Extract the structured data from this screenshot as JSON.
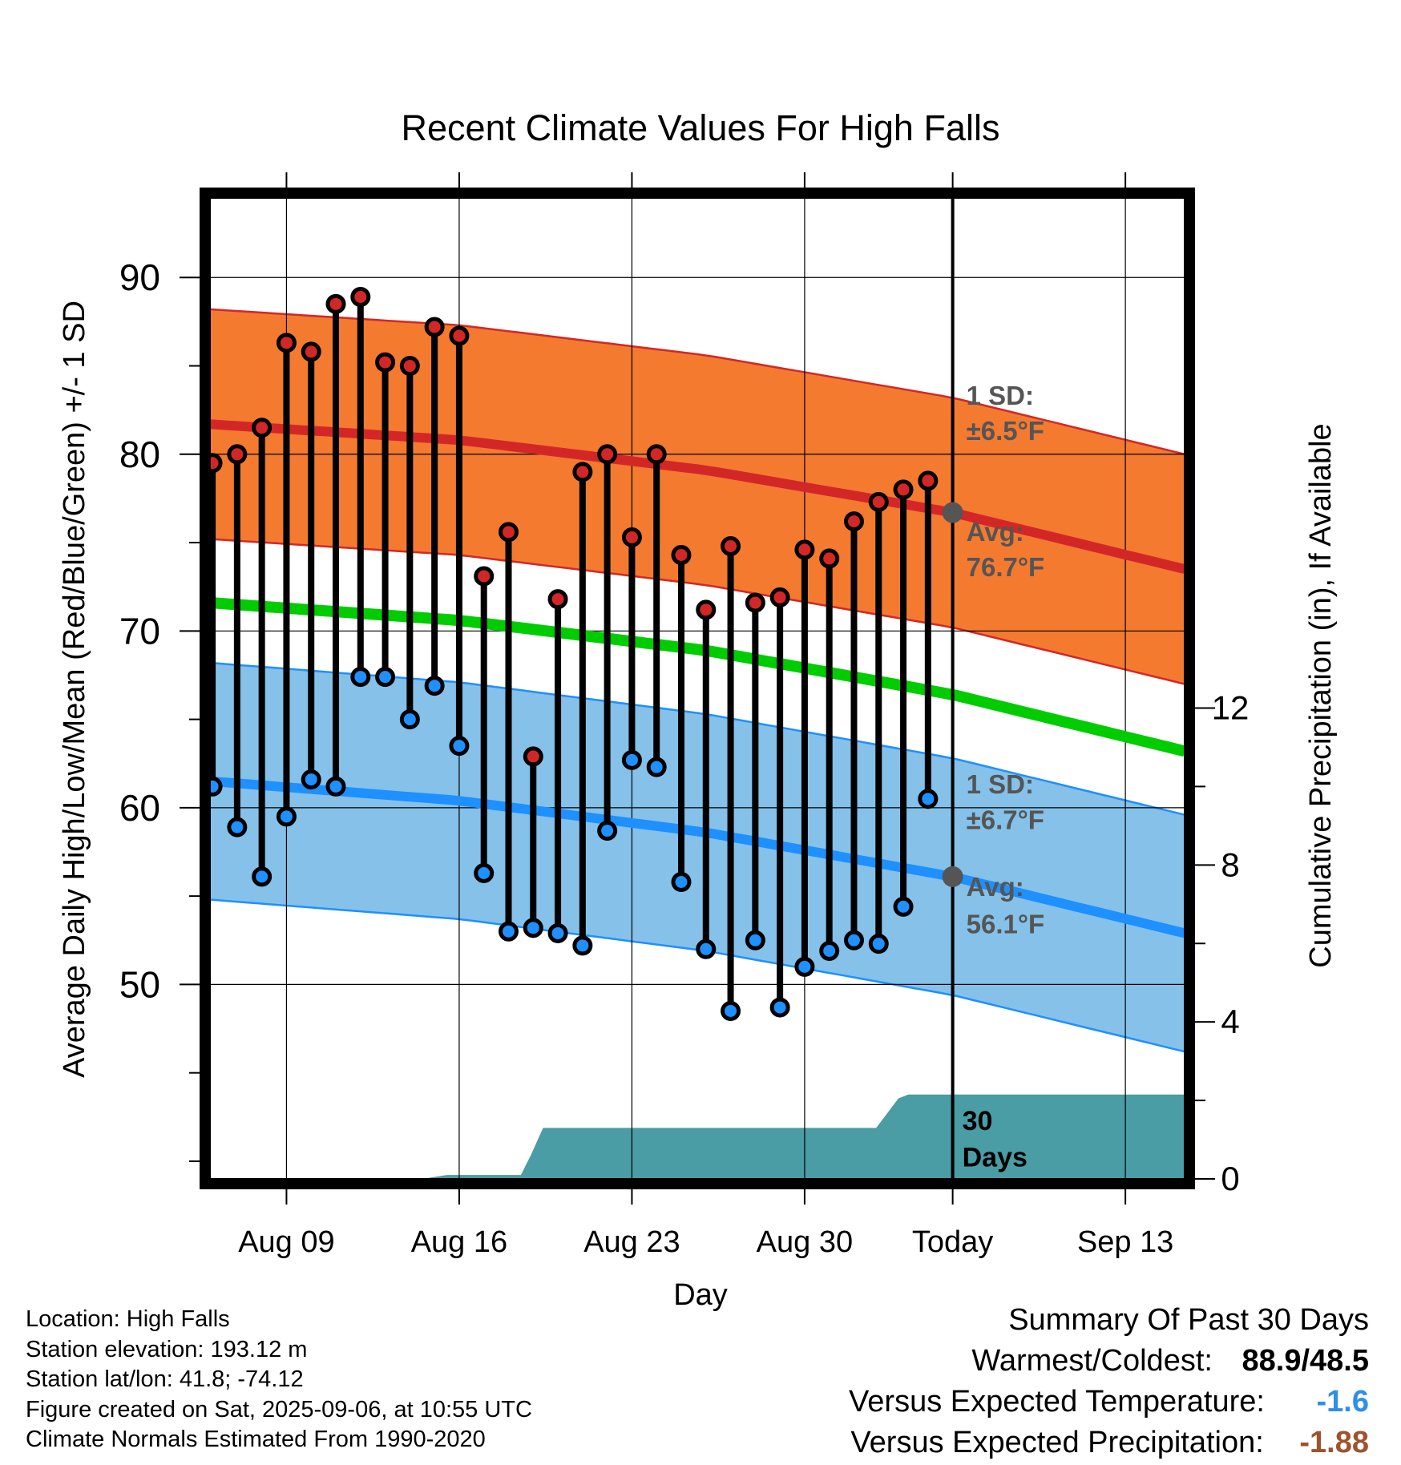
{
  "chart_data": {
    "type": "line",
    "title": "Recent Climate Values For High Falls",
    "xlabel": "Day",
    "ylabel": "Average Daily High/Low/Mean (Red/Blue/Green) +/- 1 SD",
    "y2label": "Cumulative Precipitation (in), If Available",
    "x_ticks": [
      "Aug 09",
      "Aug 16",
      "Aug 23",
      "Aug 30",
      "Today",
      "Sep 13"
    ],
    "x_tick_offsets_days": [
      -27,
      -20,
      -13,
      -6,
      0,
      7
    ],
    "xlim_days": [
      -30.1,
      9.4
    ],
    "ylim": [
      39,
      94.5
    ],
    "y_ticks": [
      50,
      60,
      70,
      80,
      90
    ],
    "y2lim": [
      0,
      25
    ],
    "y2_ticks": [
      0,
      4,
      8,
      12
    ],
    "grid": true,
    "daily": {
      "high": [
        79.5,
        80.0,
        81.5,
        86.3,
        85.8,
        88.5,
        88.9,
        85.2,
        85.0,
        87.2,
        86.7,
        73.1,
        75.6,
        62.9,
        71.8,
        79.0,
        80.0,
        75.3,
        80.0,
        74.3,
        71.2,
        74.8,
        71.6,
        71.9,
        74.6,
        74.1,
        76.2,
        77.3,
        78.0,
        78.5
      ],
      "low": [
        61.2,
        58.9,
        56.1,
        59.5,
        61.6,
        61.2,
        67.4,
        67.4,
        65.0,
        66.9,
        63.5,
        56.3,
        53.0,
        53.2,
        52.9,
        52.2,
        58.7,
        62.7,
        62.3,
        55.8,
        52.0,
        48.5,
        52.5,
        48.7,
        51.0,
        51.9,
        52.5,
        52.3,
        54.4,
        60.5
      ]
    },
    "normals": {
      "day_offsets": [
        -30.1,
        -20,
        -10,
        0,
        9.4
      ],
      "high_avg": [
        81.7,
        80.8,
        79.1,
        76.7,
        73.5
      ],
      "high_sd": 6.5,
      "low_avg": [
        61.5,
        60.4,
        58.6,
        56.1,
        52.9
      ],
      "low_sd": 6.7,
      "mean_avg": [
        71.6,
        70.6,
        68.9,
        66.4,
        63.2
      ]
    },
    "precip": {
      "day_offsets": [
        -30.1,
        -21.5,
        -20.5,
        -17.5,
        -17.1,
        -16.6,
        -3.1,
        -2.2,
        -1.8,
        9.4
      ],
      "cumulative_in": [
        0,
        0,
        0.1,
        0.1,
        0.6,
        1.3,
        1.3,
        2.05,
        2.15,
        2.15
      ]
    },
    "annotations": {
      "high_sd_label": "1 SD:",
      "high_sd_value": "±6.5°F",
      "high_avg_label": "Avg:",
      "high_avg_value": "76.7°F",
      "low_sd_label": "1 SD:",
      "low_sd_value": "±6.7°F",
      "low_avg_label": "Avg:",
      "low_avg_value": "56.1°F",
      "precip_label_line1": "30",
      "precip_label_line2": "Days"
    },
    "colors": {
      "high": "#d32727",
      "high_band": "#f47a30",
      "low": "#1e90ff",
      "low_band": "#85c1e9",
      "mean": "#00cc00",
      "precip": "#4a9ca5",
      "today_marker": "#555555"
    }
  },
  "info": {
    "location": "Location: High Falls",
    "elevation": "Station elevation: 193.12 m",
    "latlon": "Station lat/lon: 41.8; -74.12",
    "created": "Figure created on Sat, 2025-09-06, at 10:55 UTC",
    "normals": "Climate Normals Estimated From 1990-2020"
  },
  "summary": {
    "heading": "Summary Of Past 30 Days",
    "warmest_coldest_label": "Warmest/Coldest:",
    "warmest_coldest_value": "88.9/48.5",
    "temp_label": "Versus Expected Temperature:",
    "temp_value": "-1.6",
    "temp_color": "#2f8fe6",
    "precip_label": "Versus Expected Precipitation:",
    "precip_value": "-1.88",
    "precip_color": "#a0522d"
  }
}
